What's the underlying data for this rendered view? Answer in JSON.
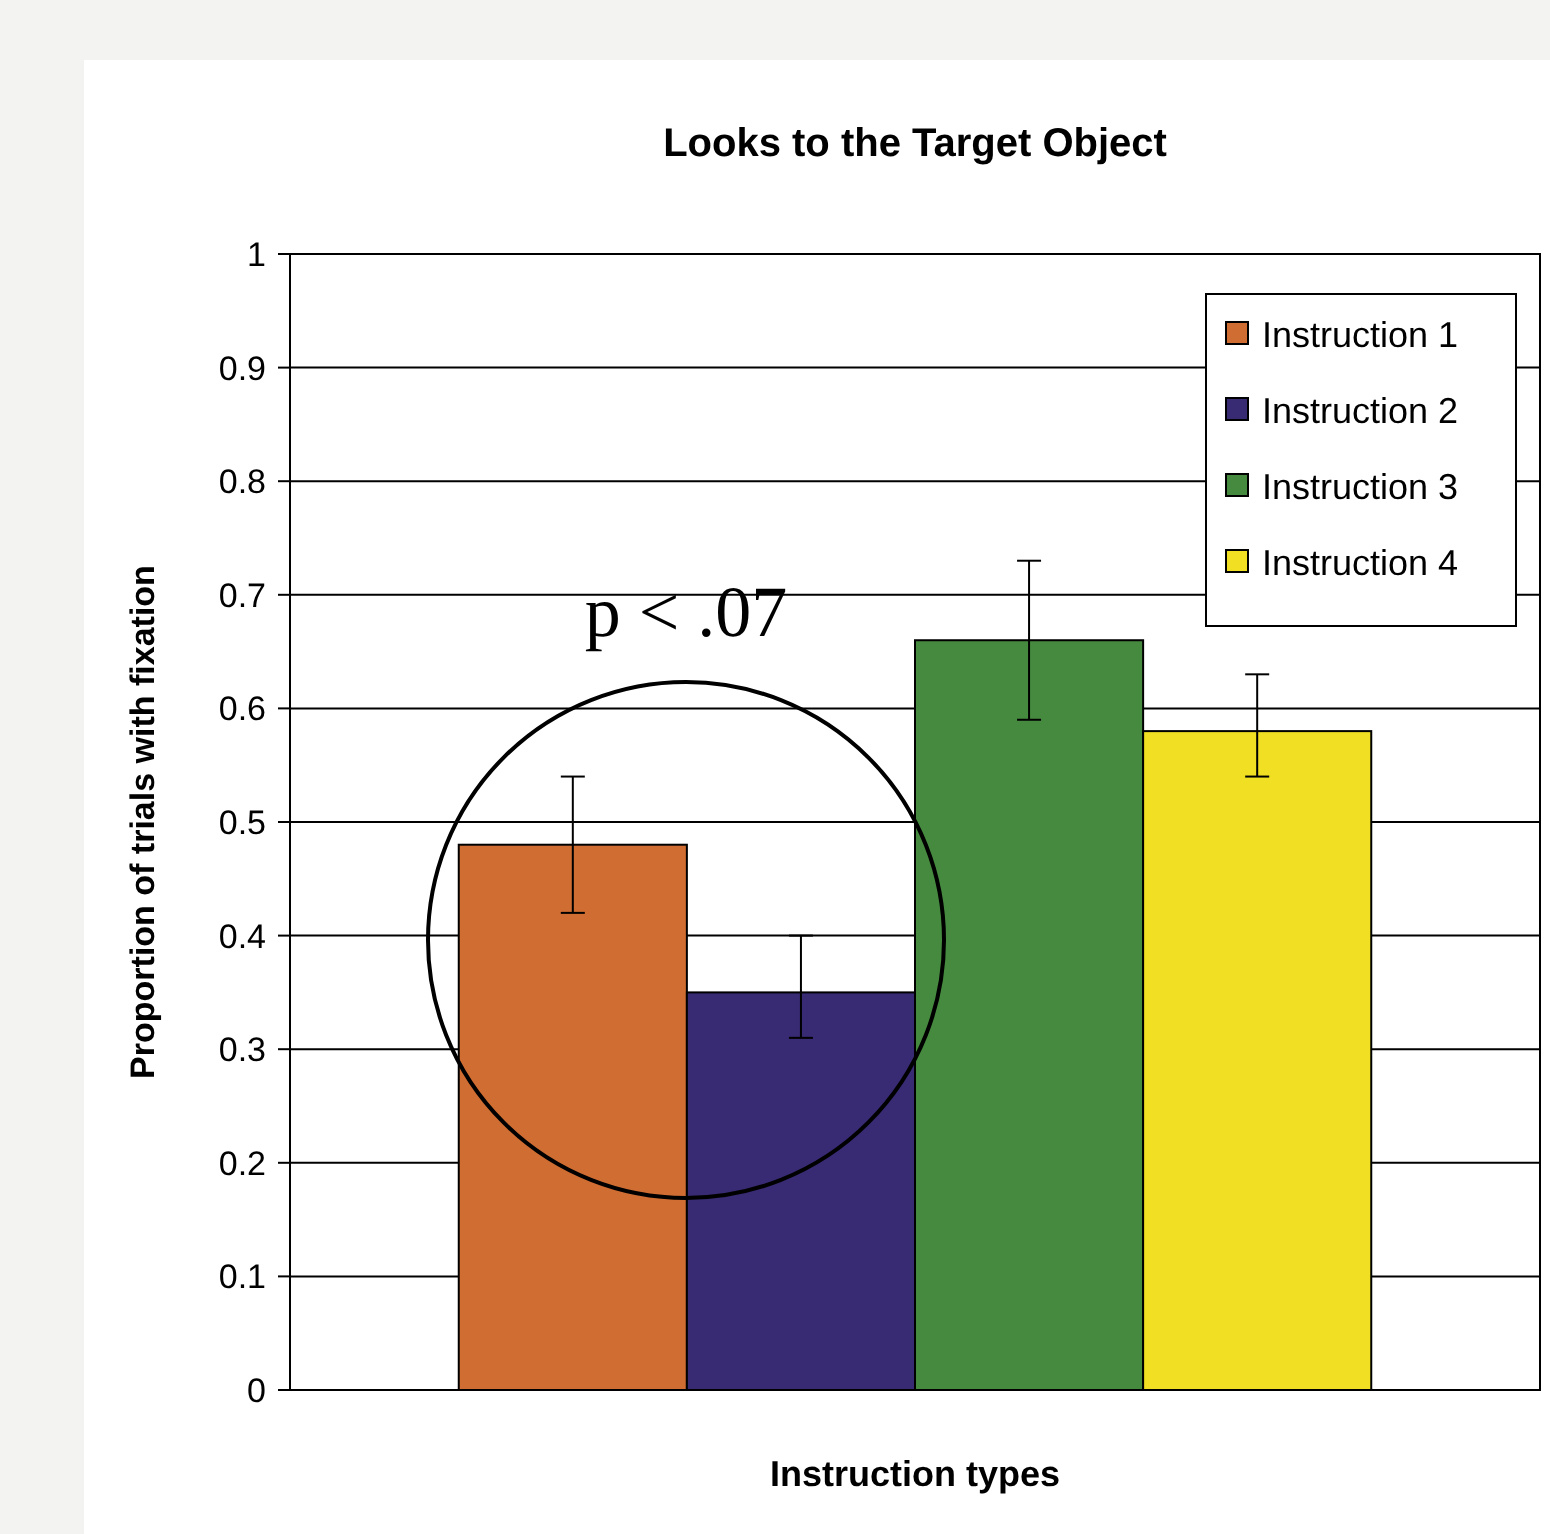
{
  "chart_data": {
    "type": "bar",
    "title": "Looks to the Target Object",
    "xlabel": "Instruction types",
    "ylabel": "Proportion of trials with fixation",
    "categories": [
      null
    ],
    "series": [
      {
        "name": "Instruction 1",
        "color": "#cf6d32",
        "values": [
          0.48
        ],
        "errors": [
          [
            0.42,
            0.54
          ]
        ]
      },
      {
        "name": "Instruction 2",
        "color": "#382a73",
        "values": [
          0.35
        ],
        "errors": [
          [
            0.31,
            0.4
          ]
        ]
      },
      {
        "name": "Instruction 3",
        "color": "#468a3f",
        "values": [
          0.66
        ],
        "errors": [
          [
            0.59,
            0.73
          ]
        ]
      },
      {
        "name": "Instruction 4",
        "color": "#f0df22",
        "values": [
          0.58
        ],
        "errors": [
          [
            0.54,
            0.63
          ]
        ]
      }
    ],
    "ylim": [
      0,
      1
    ],
    "yticks": [
      0,
      0.1,
      0.2,
      0.3,
      0.4,
      0.5,
      0.6,
      0.7,
      0.8,
      0.9,
      1
    ],
    "grid": "y",
    "legend": "top right",
    "annotations": [
      "p < .07"
    ]
  }
}
